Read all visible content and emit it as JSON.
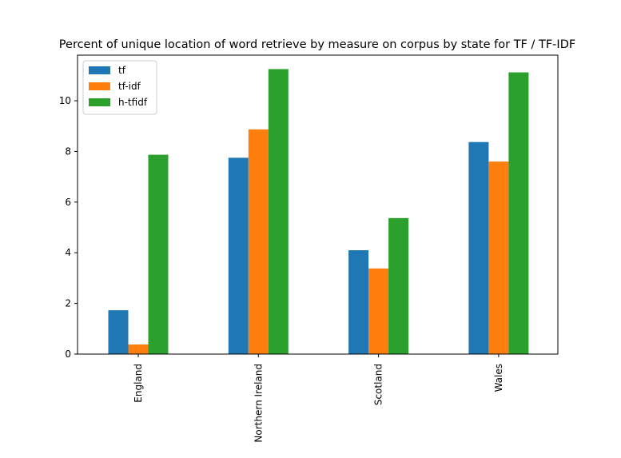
{
  "chart_data": {
    "type": "bar",
    "title": "Percent of unique location of word retrieve by measure on corpus by state for TF / TF-IDF",
    "xlabel": "",
    "ylabel": "",
    "categories": [
      "England",
      "Northern Ireland",
      "Scotland",
      "Wales"
    ],
    "series": [
      {
        "name": "tf",
        "color": "#1f77b4",
        "values": [
          1.73,
          7.75,
          4.1,
          8.37
        ]
      },
      {
        "name": "tf-idf",
        "color": "#ff7f0e",
        "values": [
          0.38,
          8.87,
          3.38,
          7.6
        ]
      },
      {
        "name": "h-tfidf",
        "color": "#2ca02c",
        "values": [
          7.87,
          11.25,
          5.37,
          11.12
        ]
      }
    ],
    "ylim": [
      0,
      11.8
    ],
    "yticks": [
      "0",
      "2",
      "4",
      "6",
      "8",
      "10"
    ],
    "grid": false,
    "legend_position": "top-left"
  }
}
